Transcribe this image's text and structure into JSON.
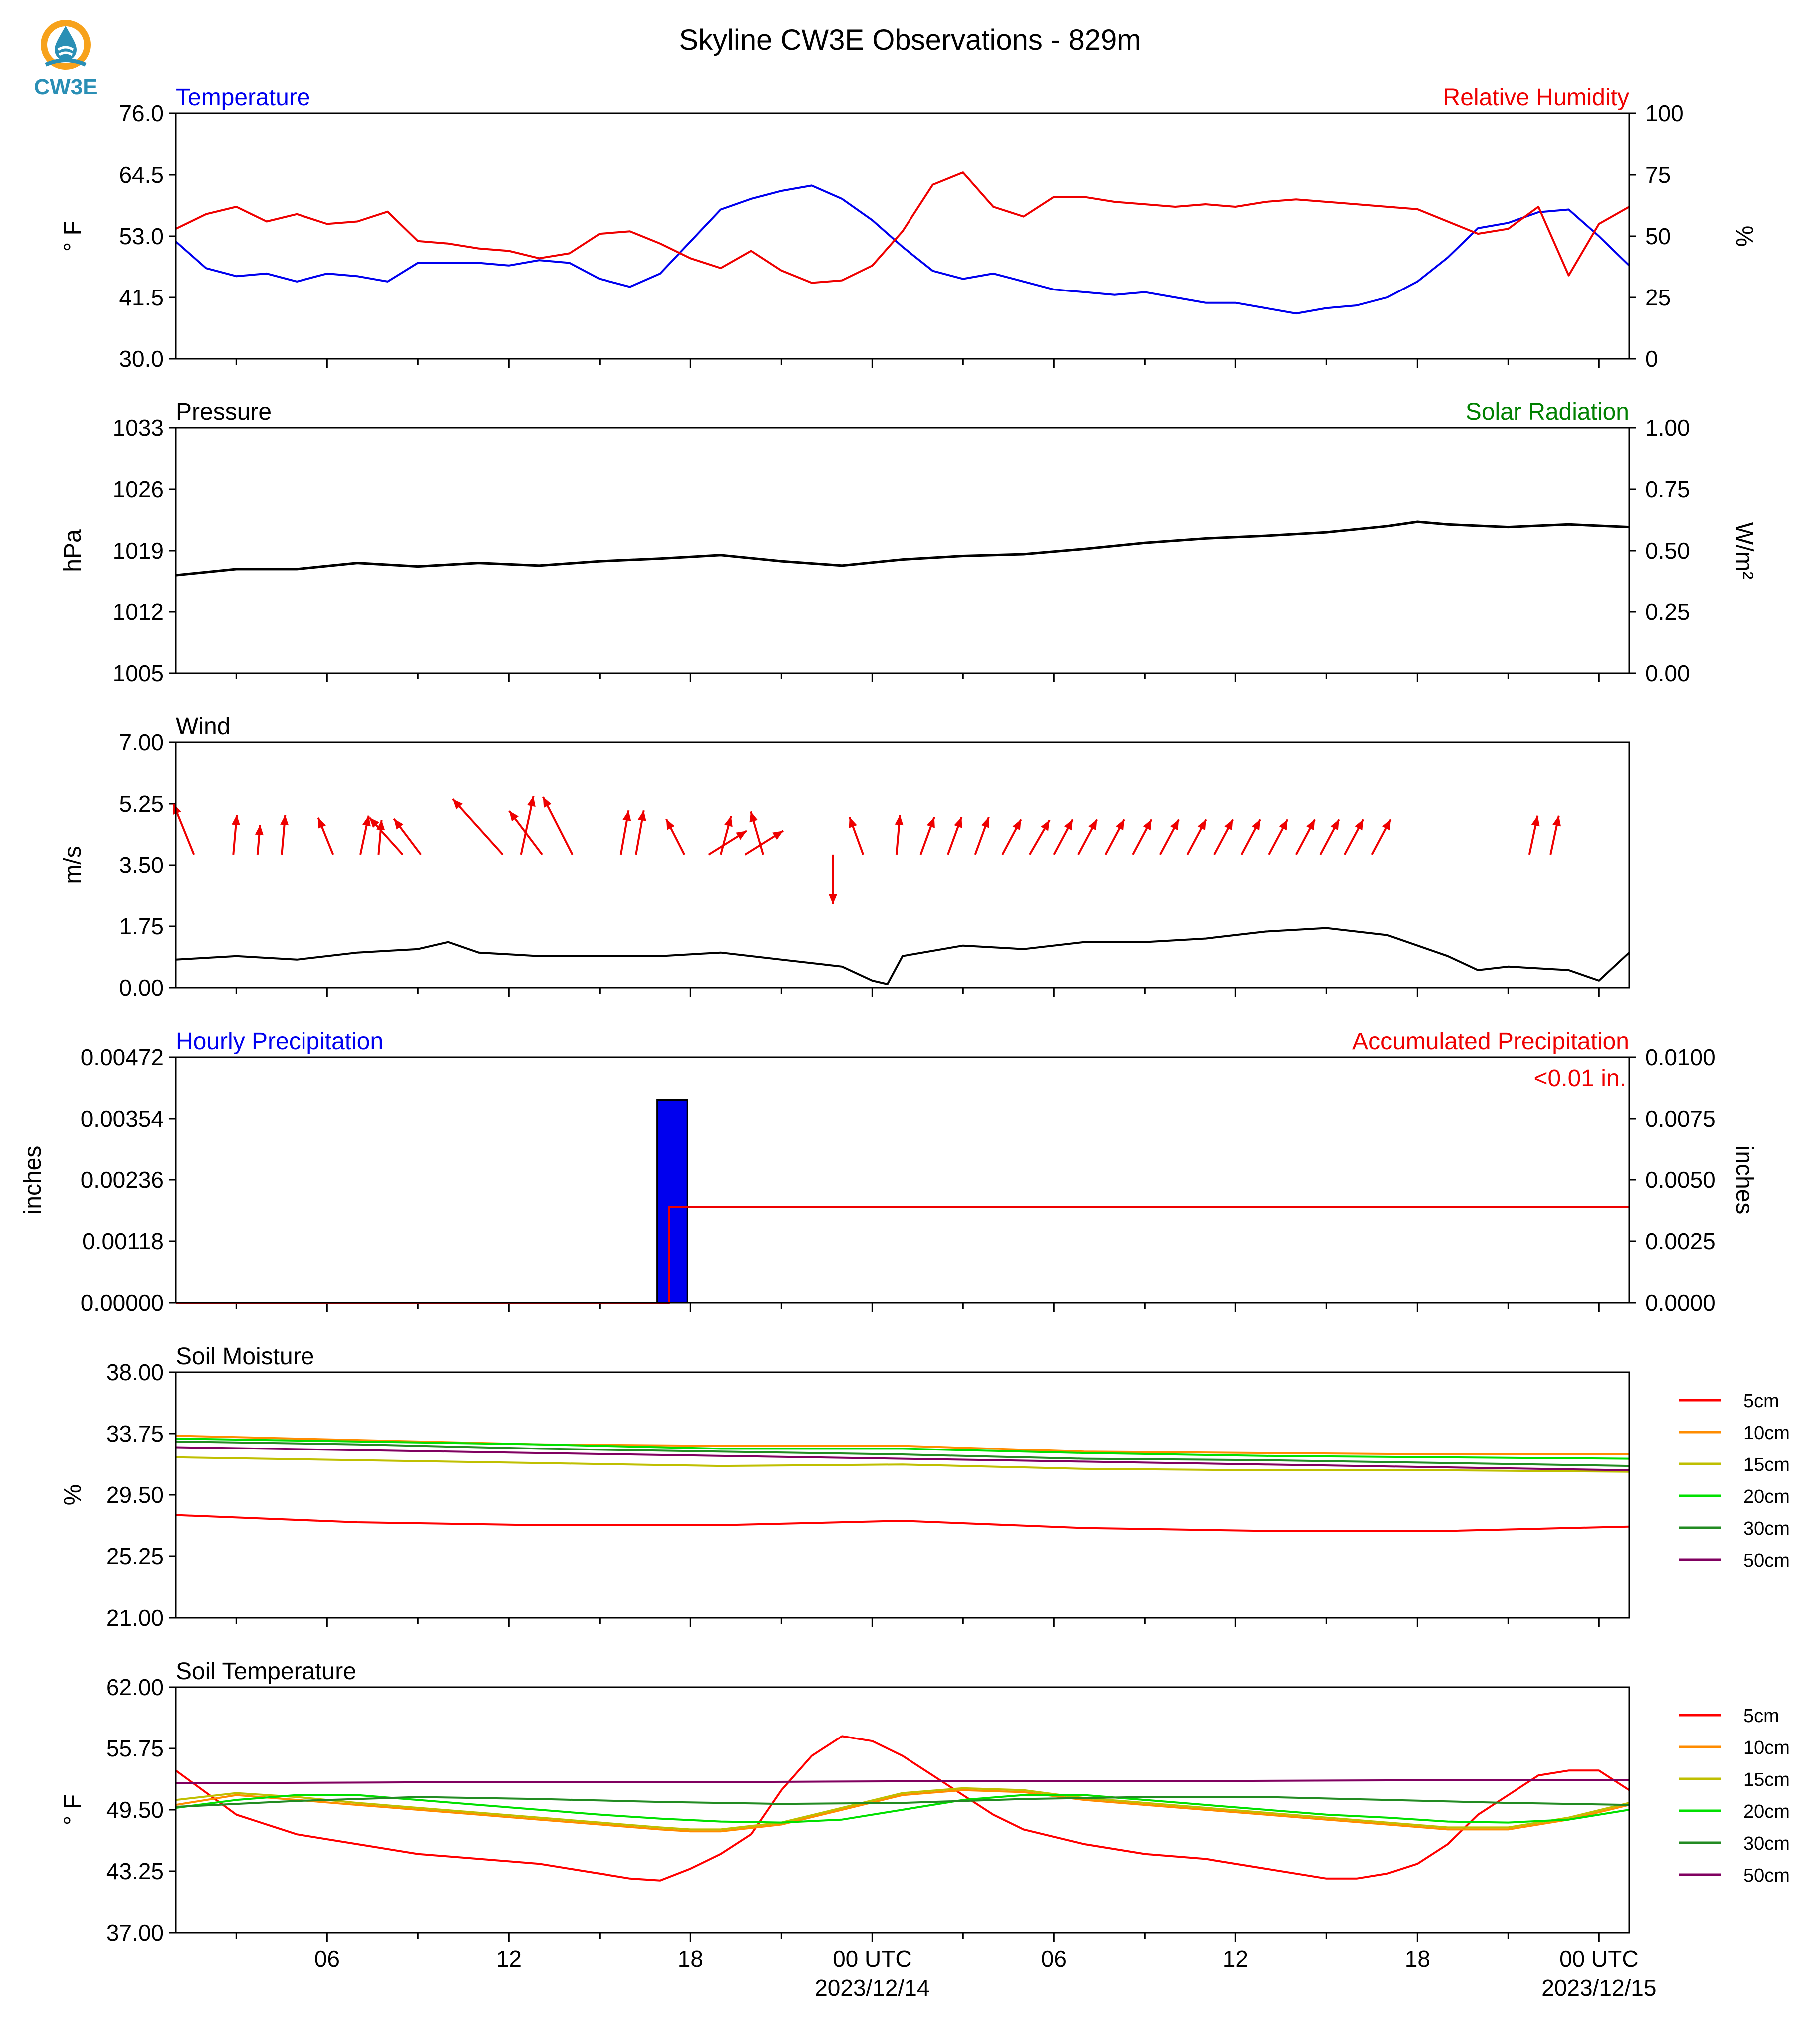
{
  "title": "Skyline CW3E Observations - 829m",
  "logo": {
    "text": "CW3E",
    "icon": "cw3e-water-drop-sun-icon"
  },
  "x_axis": {
    "tick_labels": [
      "06",
      "12",
      "18",
      "00 UTC",
      "06",
      "12",
      "18",
      "00 UTC"
    ],
    "date_labels": [
      "2023/12/14",
      "2023/12/15"
    ]
  },
  "legend": {
    "items": [
      "5cm",
      "10cm",
      "15cm",
      "20cm",
      "30cm",
      "50cm"
    ],
    "colors": [
      "#ff0000",
      "#ff8c00",
      "#bfbf00",
      "#00e000",
      "#228b22",
      "#800060"
    ]
  },
  "panels": [
    {
      "key": "temp",
      "left_title": "Temperature",
      "left_title_color": "#0000ee",
      "right_title": "Relative Humidity",
      "right_title_color": "#ee0000",
      "ylabel": "° F",
      "ylabel_right": "%",
      "yticks": [
        "30.0",
        "41.5",
        "53.0",
        "64.5",
        "76.0"
      ],
      "yticks_right": [
        "0",
        "25",
        "50",
        "75",
        "100"
      ]
    },
    {
      "key": "pressure",
      "left_title": "Pressure",
      "left_title_color": "#000000",
      "right_title": "Solar Radiation",
      "right_title_color": "#008000",
      "ylabel": "hPa",
      "ylabel_right": "W/m²",
      "yticks": [
        "1005",
        "1012",
        "1019",
        "1026",
        "1033"
      ],
      "yticks_right": [
        "0.00",
        "0.25",
        "0.50",
        "0.75",
        "1.00"
      ]
    },
    {
      "key": "wind",
      "left_title": "Wind",
      "left_title_color": "#000000",
      "right_title": "",
      "right_title_color": "#000000",
      "ylabel": "m/s",
      "ylabel_right": "",
      "yticks": [
        "0.00",
        "1.75",
        "3.50",
        "5.25",
        "7.00"
      ],
      "yticks_right": []
    },
    {
      "key": "precip",
      "left_title": "Hourly Precipitation",
      "left_title_color": "#0000ee",
      "right_title": "Accumulated Precipitation",
      "right_title_color": "#ee0000",
      "ylabel": "inches",
      "ylabel_right": "inches",
      "yticks": [
        "0.00000",
        "0.00118",
        "0.00236",
        "0.00354",
        "0.00472"
      ],
      "yticks_right": [
        "0.0000",
        "0.0025",
        "0.0050",
        "0.0075",
        "0.0100"
      ],
      "annotation": "<0.01 in."
    },
    {
      "key": "soilm",
      "left_title": "Soil Moisture",
      "left_title_color": "#000000",
      "right_title": "",
      "right_title_color": "#000000",
      "ylabel": "%",
      "ylabel_right": "",
      "yticks": [
        "21.00",
        "25.25",
        "29.50",
        "33.75",
        "38.00"
      ],
      "yticks_right": []
    },
    {
      "key": "soilt",
      "left_title": "Soil Temperature",
      "left_title_color": "#000000",
      "right_title": "",
      "right_title_color": "#000000",
      "ylabel": "° F",
      "ylabel_right": "",
      "yticks": [
        "37.00",
        "43.25",
        "49.50",
        "55.75",
        "62.00"
      ],
      "yticks_right": []
    }
  ],
  "chart_data": {
    "type": "line",
    "x_unit": "hours after 2023-12-13 01 UTC",
    "x_range": [
      0,
      48
    ],
    "temperature": {
      "name": "Temperature",
      "color": "#0000ee",
      "ylim": [
        30,
        76
      ],
      "x": [
        0,
        1,
        2,
        3,
        4,
        5,
        6,
        7,
        8,
        9,
        10,
        11,
        12,
        13,
        14,
        15,
        16,
        17,
        18,
        19,
        20,
        21,
        22,
        23,
        24,
        25,
        26,
        27,
        28,
        29,
        30,
        31,
        32,
        33,
        34,
        35,
        36,
        37,
        38,
        39,
        40,
        41,
        42,
        43,
        44,
        45,
        46,
        47,
        48
      ],
      "y": [
        52,
        47,
        45.5,
        46,
        44.5,
        46,
        45.5,
        44.5,
        48,
        48,
        48,
        47.5,
        48.5,
        48,
        45,
        43.5,
        46,
        52,
        58,
        60,
        61.5,
        62.5,
        60,
        56,
        51,
        46.5,
        45,
        46,
        44.5,
        43,
        42.5,
        42,
        42.5,
        41.5,
        40.5,
        40.5,
        39.5,
        38.5,
        39.5,
        40,
        41.5,
        44.5,
        49,
        54.5,
        55.5,
        57.5,
        58,
        53,
        47.5
      ]
    },
    "relative_humidity": {
      "name": "Relative Humidity",
      "color": "#ee0000",
      "ylim": [
        0,
        100
      ],
      "x": [
        0,
        1,
        2,
        3,
        4,
        5,
        6,
        7,
        8,
        9,
        10,
        11,
        12,
        13,
        14,
        15,
        16,
        17,
        18,
        19,
        20,
        21,
        22,
        23,
        24,
        25,
        26,
        27,
        28,
        29,
        30,
        31,
        32,
        33,
        34,
        35,
        36,
        37,
        38,
        39,
        40,
        41,
        42,
        43,
        44,
        45,
        46,
        47,
        48
      ],
      "y": [
        53,
        59,
        62,
        56,
        59,
        55,
        56,
        60,
        48,
        47,
        45,
        44,
        41,
        43,
        51,
        52,
        47,
        41,
        37,
        44,
        36,
        31,
        32,
        38,
        52,
        71,
        76,
        62,
        58,
        66,
        66,
        64,
        63,
        62,
        63,
        62,
        64,
        65,
        64,
        63,
        62,
        61,
        56,
        51,
        53,
        62,
        34,
        55,
        62
      ]
    },
    "pressure": {
      "name": "Pressure",
      "color": "#000000",
      "ylim": [
        1005,
        1033
      ],
      "x": [
        0,
        2,
        4,
        6,
        8,
        10,
        12,
        14,
        16,
        18,
        20,
        22,
        24,
        26,
        28,
        30,
        32,
        34,
        36,
        38,
        40,
        41,
        42,
        44,
        46,
        48
      ],
      "y": [
        1016.2,
        1016.9,
        1016.9,
        1017.6,
        1017.2,
        1017.6,
        1017.3,
        1017.8,
        1018.1,
        1018.5,
        1017.8,
        1017.3,
        1018,
        1018.4,
        1018.6,
        1019.2,
        1019.9,
        1020.4,
        1020.7,
        1021.1,
        1021.8,
        1022.3,
        1022,
        1021.7,
        1022,
        1021.7
      ]
    },
    "wind_speed": {
      "name": "Wind",
      "color": "#000000",
      "ylim": [
        0,
        7
      ],
      "x": [
        0,
        2,
        4,
        6,
        8,
        9,
        10,
        12,
        14,
        16,
        18,
        20,
        22,
        23,
        23.5,
        24,
        26,
        28,
        30,
        32,
        34,
        36,
        38,
        40,
        42,
        43,
        44,
        46,
        47,
        48
      ],
      "y": [
        0.8,
        0.9,
        0.8,
        1.0,
        1.1,
        1.3,
        1.0,
        0.9,
        0.9,
        0.9,
        1.0,
        0.8,
        0.6,
        0.2,
        0.1,
        0.9,
        1.2,
        1.1,
        1.3,
        1.3,
        1.4,
        1.6,
        1.7,
        1.5,
        0.9,
        0.5,
        0.6,
        0.5,
        0.2,
        1.0
      ]
    },
    "wind_barbs": {
      "color": "#ee0000",
      "speeds": [
        3.8,
        3.8,
        3.8,
        3.8,
        3.8,
        3.8,
        3.8,
        3.8,
        3.8,
        3.8,
        3.8,
        3.8,
        3.8,
        3.8,
        3.8,
        3.8,
        3.8,
        3.8,
        3.8,
        3.8,
        3.8,
        3.8,
        3.8,
        3.8,
        3.8,
        3.8,
        3.8,
        3.8,
        3.8,
        3.8,
        3.8,
        3.8,
        3.8,
        3.8,
        3.8,
        3.8,
        3.8,
        3.8,
        3.8,
        3.8,
        3.8,
        3.8,
        3.8
      ],
      "x": [
        0.6,
        1.9,
        2.7,
        3.5,
        5.2,
        6.1,
        6.7,
        7.5,
        8.1,
        10.8,
        11.4,
        12.1,
        13.1,
        14.7,
        15.2,
        16.8,
        17.6,
        18.0,
        18.8,
        19.4,
        21.7,
        22.7,
        23.8,
        24.6,
        25.5,
        26.4,
        27.3,
        28.2,
        29.0,
        29.8,
        30.7,
        31.6,
        32.5,
        33.4,
        34.3,
        35.2,
        36.1,
        37.0,
        37.8,
        38.6,
        39.5,
        44.7,
        45.4
      ],
      "dir_deg": [
        338,
        5,
        5,
        5,
        338,
        12,
        5,
        318,
        323,
        318,
        12,
        323,
        333,
        10,
        10,
        333,
        58,
        15,
        58,
        344,
        180,
        340,
        5,
        20,
        20,
        20,
        28,
        30,
        28,
        28,
        28,
        28,
        28,
        28,
        28,
        28,
        28,
        28,
        28,
        28,
        28,
        12,
        12
      ],
      "len": [
        55,
        40,
        30,
        40,
        40,
        40,
        35,
        50,
        45,
        75,
        60,
        55,
        65,
        45,
        45,
        40,
        45,
        40,
        45,
        45,
        50,
        40,
        40,
        40,
        40,
        40,
        40,
        40,
        40,
        40,
        40,
        40,
        40,
        40,
        40,
        40,
        40,
        40,
        40,
        40,
        40,
        40,
        40
      ]
    },
    "hourly_precip": {
      "name": "Hourly Precipitation",
      "color": "#0000ee",
      "ylim": [
        0,
        0.00472
      ],
      "bars": [
        {
          "x0": 15.9,
          "x1": 16.9,
          "value": 0.0039
        }
      ]
    },
    "accumulated_precip": {
      "name": "Accumulated Precipitation",
      "color": "#ee0000",
      "ylim": [
        0,
        0.01
      ],
      "x": [
        0,
        16.3,
        16.3,
        48
      ],
      "y": [
        0,
        0,
        0.0039,
        0.0039
      ]
    },
    "soil_moisture": {
      "ylim": [
        21,
        38
      ],
      "series": [
        {
          "name": "5cm",
          "color": "#ff0000",
          "x": [
            0,
            6,
            12,
            18,
            24,
            30,
            36,
            42,
            48
          ],
          "y": [
            28.1,
            27.6,
            27.4,
            27.4,
            27.7,
            27.2,
            27.0,
            27.0,
            27.3
          ]
        },
        {
          "name": "10cm",
          "color": "#ff8c00",
          "x": [
            0,
            6,
            12,
            18,
            24,
            30,
            36,
            42,
            48
          ],
          "y": [
            33.6,
            33.3,
            33.0,
            32.9,
            32.9,
            32.5,
            32.4,
            32.3,
            32.3
          ]
        },
        {
          "name": "15cm",
          "color": "#bfbf00",
          "x": [
            0,
            6,
            12,
            18,
            24,
            30,
            36,
            42,
            48
          ],
          "y": [
            32.1,
            31.9,
            31.7,
            31.5,
            31.6,
            31.3,
            31.2,
            31.2,
            31.1
          ]
        },
        {
          "name": "20cm",
          "color": "#00e000",
          "x": [
            0,
            6,
            12,
            18,
            24,
            30,
            36,
            42,
            48
          ],
          "y": [
            33.4,
            33.2,
            33.0,
            32.7,
            32.7,
            32.4,
            32.2,
            32.1,
            32.0
          ]
        },
        {
          "name": "30cm",
          "color": "#228b22",
          "x": [
            0,
            6,
            12,
            18,
            24,
            30,
            36,
            42,
            48
          ],
          "y": [
            33.2,
            33.0,
            32.7,
            32.5,
            32.3,
            32.0,
            31.9,
            31.7,
            31.5
          ]
        },
        {
          "name": "50cm",
          "color": "#800060",
          "x": [
            0,
            6,
            12,
            18,
            24,
            30,
            36,
            42,
            48
          ],
          "y": [
            32.8,
            32.6,
            32.4,
            32.2,
            32.0,
            31.8,
            31.6,
            31.4,
            31.2
          ]
        }
      ]
    },
    "soil_temperature": {
      "ylim": [
        37,
        62
      ],
      "series": [
        {
          "name": "5cm",
          "color": "#ff0000",
          "x": [
            0,
            2,
            4,
            6,
            8,
            10,
            12,
            14,
            15,
            16,
            17,
            18,
            19,
            20,
            21,
            22,
            23,
            24,
            25,
            26,
            27,
            28,
            30,
            32,
            34,
            36,
            38,
            39,
            40,
            41,
            42,
            43,
            44,
            45,
            46,
            47,
            48
          ],
          "y": [
            53.5,
            49,
            47,
            46,
            45,
            44.5,
            44,
            43,
            42.5,
            42.3,
            43.5,
            45,
            47,
            51.5,
            55,
            57,
            56.5,
            55,
            53,
            51,
            49,
            47.5,
            46,
            45,
            44.5,
            43.5,
            42.5,
            42.5,
            43,
            44,
            46,
            49,
            51,
            53,
            53.5,
            53.5,
            51.5
          ]
        },
        {
          "name": "10cm",
          "color": "#ff8c00",
          "x": [
            0,
            2,
            4,
            6,
            8,
            10,
            12,
            14,
            16,
            17,
            18,
            20,
            22,
            24,
            26,
            28,
            30,
            32,
            34,
            36,
            38,
            40,
            42,
            44,
            46,
            48
          ],
          "y": [
            50,
            51,
            50.5,
            50,
            49.5,
            49,
            48.5,
            48,
            47.5,
            47.3,
            47.3,
            48,
            49.5,
            51,
            51.5,
            51.3,
            50.5,
            50,
            49.5,
            49,
            48.5,
            48,
            47.5,
            47.5,
            48.5,
            50
          ]
        },
        {
          "name": "15cm",
          "color": "#bfbf00",
          "x": [
            0,
            2,
            4,
            6,
            8,
            10,
            12,
            14,
            16,
            17,
            18,
            20,
            22,
            24,
            26,
            28,
            30,
            32,
            34,
            36,
            38,
            40,
            42,
            44,
            46,
            48
          ],
          "y": [
            50.5,
            51.2,
            50.8,
            50.2,
            49.7,
            49.2,
            48.7,
            48.2,
            47.7,
            47.5,
            47.5,
            48.2,
            49.7,
            51.2,
            51.7,
            51.5,
            50.7,
            50.2,
            49.7,
            49.2,
            48.7,
            48.2,
            47.7,
            47.7,
            48.7,
            50.2
          ]
        },
        {
          "name": "20cm",
          "color": "#00e000",
          "x": [
            0,
            2,
            4,
            6,
            8,
            10,
            12,
            14,
            16,
            18,
            20,
            22,
            24,
            26,
            28,
            30,
            32,
            34,
            36,
            38,
            40,
            42,
            44,
            46,
            48
          ],
          "y": [
            49.7,
            50.5,
            51,
            51,
            50.5,
            50,
            49.5,
            49,
            48.6,
            48.3,
            48.2,
            48.5,
            49.5,
            50.5,
            51,
            51,
            50.5,
            50,
            49.5,
            49,
            48.7,
            48.3,
            48.2,
            48.5,
            49.5
          ]
        },
        {
          "name": "30cm",
          "color": "#228b22",
          "x": [
            0,
            4,
            8,
            12,
            16,
            20,
            24,
            28,
            32,
            36,
            40,
            44,
            48
          ],
          "y": [
            49.8,
            50.4,
            50.8,
            50.6,
            50.3,
            50.1,
            50.2,
            50.6,
            50.8,
            50.8,
            50.5,
            50.2,
            50.0
          ]
        },
        {
          "name": "50cm",
          "color": "#800060",
          "x": [
            0,
            8,
            16,
            24,
            32,
            40,
            48
          ],
          "y": [
            52.2,
            52.3,
            52.3,
            52.4,
            52.4,
            52.5,
            52.5
          ]
        }
      ]
    }
  }
}
